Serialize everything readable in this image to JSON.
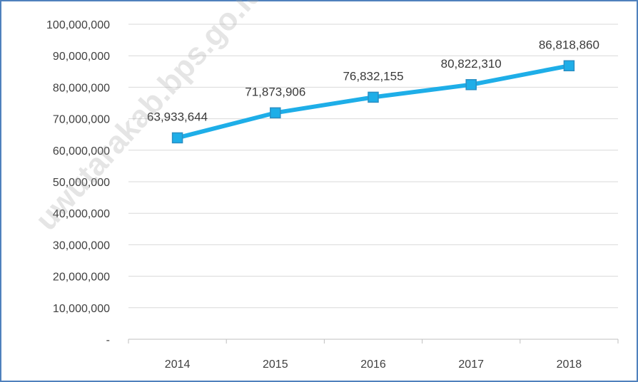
{
  "chart_data": {
    "type": "line",
    "categories": [
      "2014",
      "2015",
      "2016",
      "2017",
      "2018"
    ],
    "series": [
      {
        "values": [
          63933644,
          71873906,
          76832155,
          80822310,
          86818860
        ],
        "labels": [
          "63,933,644",
          "71,873,906",
          "76,832,155",
          "80,822,310",
          "86,818,860"
        ],
        "color": "#1eaee8"
      }
    ],
    "y_ticks": [
      0,
      10000000,
      20000000,
      30000000,
      40000000,
      50000000,
      60000000,
      70000000,
      80000000,
      90000000,
      100000000
    ],
    "y_tick_labels": [
      "-",
      "10,000,000",
      "20,000,000",
      "30,000,000",
      "40,000,000",
      "50,000,000",
      "60,000,000",
      "70,000,000",
      "80,000,000",
      "90,000,000",
      "100,000,000"
    ],
    "ylim": [
      0,
      100000000
    ],
    "grid": true,
    "legend": "none",
    "title": "",
    "xlabel": "",
    "ylabel": ""
  },
  "watermark": "uwutarakab.bps.go.id",
  "colors": {
    "frame": "#4f81bd",
    "grid": "#d9d9d9",
    "axis": "#bfbfbf",
    "line": "#1eaee8"
  }
}
